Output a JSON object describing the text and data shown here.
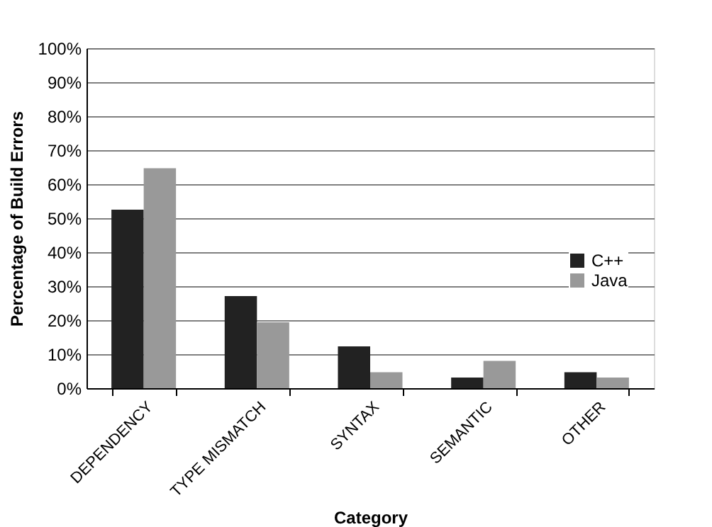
{
  "chart_data": {
    "type": "bar",
    "xlabel": "Category",
    "ylabel": "Percentage of Build Errors",
    "categories": [
      "DEPENDENCY",
      "TYPE MISMATCH",
      "SYNTAX",
      "SEMANTIC",
      "OTHER"
    ],
    "series": [
      {
        "name": "C++",
        "color": "#222222",
        "values": [
          52.5,
          27.1,
          12.3,
          3.1,
          4.7
        ]
      },
      {
        "name": "Java",
        "color": "#999999",
        "values": [
          64.7,
          19.4,
          4.7,
          8.0,
          3.1
        ]
      }
    ],
    "ylim": [
      0,
      100
    ],
    "yticks": [
      {
        "value": 0,
        "label": "0%"
      },
      {
        "value": 10,
        "label": "10%"
      },
      {
        "value": 20,
        "label": "20%"
      },
      {
        "value": 30,
        "label": "30%"
      },
      {
        "value": 40,
        "label": "40%"
      },
      {
        "value": 50,
        "label": "50%"
      },
      {
        "value": 60,
        "label": "60%"
      },
      {
        "value": 70,
        "label": "70%"
      },
      {
        "value": 80,
        "label": "80%"
      },
      {
        "value": 90,
        "label": "90%"
      },
      {
        "value": 100,
        "label": "100%"
      }
    ],
    "grid": "y",
    "legend": "right"
  }
}
